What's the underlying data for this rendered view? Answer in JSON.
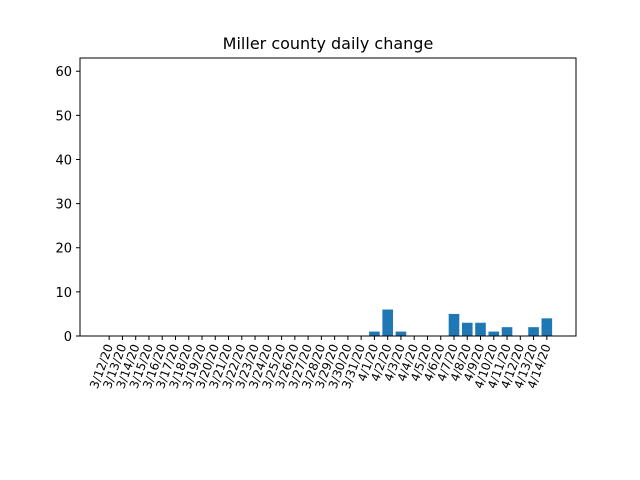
{
  "chart_data": {
    "type": "bar",
    "title": "Miller county daily change",
    "xlabel": "",
    "ylabel": "",
    "ylim": [
      0,
      63
    ],
    "yticks": [
      0,
      10,
      20,
      30,
      40,
      50,
      60
    ],
    "categories": [
      "3/12/20",
      "3/13/20",
      "3/14/20",
      "3/15/20",
      "3/16/20",
      "3/17/20",
      "3/18/20",
      "3/19/20",
      "3/20/20",
      "3/21/20",
      "3/22/20",
      "3/23/20",
      "3/24/20",
      "3/25/20",
      "3/26/20",
      "3/27/20",
      "3/28/20",
      "3/29/20",
      "3/30/20",
      "3/31/20",
      "4/1/20",
      "4/2/20",
      "4/3/20",
      "4/4/20",
      "4/5/20",
      "4/6/20",
      "4/7/20",
      "4/8/20",
      "4/9/20",
      "4/10/20",
      "4/11/20",
      "4/12/20",
      "4/13/20",
      "4/14/20"
    ],
    "values": [
      0,
      0,
      0,
      0,
      0,
      0,
      0,
      0,
      0,
      0,
      0,
      0,
      0,
      0,
      0,
      0,
      0,
      0,
      0,
      0,
      1,
      6,
      1,
      0,
      0,
      0,
      5,
      3,
      3,
      1,
      2,
      0,
      2,
      4
    ],
    "bar_color": "#1f77b4",
    "grid": false,
    "legend": "none"
  }
}
